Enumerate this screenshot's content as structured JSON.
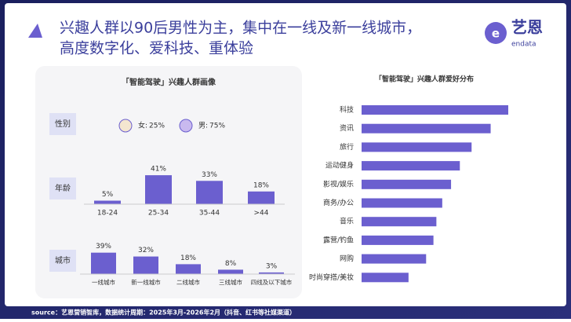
{
  "header": {
    "title_lines": [
      "兴趣人群以90后男性为主，集中在一线及新一线城市，",
      "高度数字化、爱科技、重体验"
    ],
    "logo_text": "艺恩",
    "logo_sub": "endata"
  },
  "left_panel_title": "「智能驾驶」兴趣人群画像",
  "source": "source：艺恩营销智库，数据统计周期：2025年3月-2026年2月（抖音、红书等社媒渠道）",
  "chart_data": [
    {
      "type": "pictogram",
      "label": "性别",
      "categories": [
        "女:",
        "男:"
      ],
      "values": [
        25,
        75
      ],
      "value_labels": [
        "25%",
        "75%"
      ],
      "color": "#6b5fcf"
    },
    {
      "type": "bar",
      "label": "年龄",
      "categories": [
        "18-24",
        "25-34",
        "35-44",
        ">44"
      ],
      "values": [
        5,
        41,
        33,
        18
      ],
      "value_labels": [
        "5%",
        "41%",
        "33%",
        "18%"
      ],
      "color": "#6b5fcf"
    },
    {
      "type": "bar",
      "label": "城市",
      "categories": [
        "一线城市",
        "新一线城市",
        "二线城市",
        "三线城市",
        "四线及以下城市"
      ],
      "values": [
        39,
        32,
        18,
        8,
        3
      ],
      "value_labels": [
        "39%",
        "32%",
        "18%",
        "8%",
        "3%"
      ],
      "color": "#6b5fcf"
    },
    {
      "type": "hbar",
      "title": "「智能驾驶」兴趣人群爱好分布",
      "categories": [
        "科技",
        "资讯",
        "旅行",
        "运动健身",
        "影视/娱乐",
        "商务/办公",
        "音乐",
        "露营/钓鱼",
        "网购",
        "时尚穿搭/美妆"
      ],
      "values": [
        100,
        88,
        75,
        67,
        61,
        55,
        51,
        49,
        44,
        32
      ],
      "color": "#6b5fcf"
    }
  ]
}
